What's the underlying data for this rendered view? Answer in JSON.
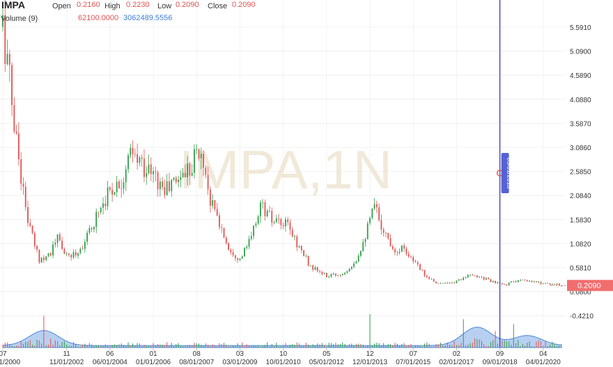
{
  "header": {
    "symbol": "IMPA",
    "open_label": "Open",
    "open_value": "0.2160",
    "high_label": "High",
    "high_value": "0.2230",
    "low_label": "Low",
    "low_value": "0.2090",
    "close_label": "Close",
    "close_value": "0.2090",
    "volume_label": "Volume (9)",
    "volume_value_1": "62100.0000",
    "volume_value_2": "3062489.5556"
  },
  "watermark": "IMPA,1N",
  "crosshair": {
    "date_label": "09/01/2018"
  },
  "last_price_label": "0.2090",
  "colors": {
    "up": "#2e9e48",
    "down": "#e05252",
    "volume_fill": "#aac8ee",
    "volume_line": "#4a86d8",
    "crosshair": "#3b3bb5",
    "last_price_bg": "#f26e6e"
  },
  "chart_data": {
    "type": "candlestick",
    "y_ticks": [
      "5.5910",
      "5.0900",
      "4.5890",
      "4.0880",
      "3.5870",
      "3.0860",
      "2.5850",
      "2.0840",
      "1.5830",
      "1.0820",
      "0.5810",
      "0.0800",
      "-0.4210"
    ],
    "ylim": [
      -0.5,
      5.9
    ],
    "x_ticks_top": [
      "07",
      "11",
      "06",
      "01",
      "08",
      "03",
      "10",
      "05",
      "12",
      "07",
      "02",
      "09",
      "04"
    ],
    "x_ticks_bottom": [
      "07/01/2000",
      "11/01/2002",
      "06/01/2004",
      "01/01/2006",
      "08/01/2007",
      "03/01/2009",
      "10/01/2010",
      "05/01/2012",
      "12/01/2013",
      "07/01/2015",
      "02/01/2017",
      "09/01/2018",
      "04/01/2020"
    ],
    "x_start": "2000-07",
    "x_end": "2020-12",
    "price_anchors": [
      [
        "2000-07",
        5.6
      ],
      [
        "2000-09",
        4.9
      ],
      [
        "2000-12",
        3.6
      ],
      [
        "2001-02",
        2.9
      ],
      [
        "2001-05",
        1.8
      ],
      [
        "2001-08",
        1.2
      ],
      [
        "2001-11",
        0.75
      ],
      [
        "2002-04",
        0.9
      ],
      [
        "2002-07",
        1.2
      ],
      [
        "2002-11",
        0.8
      ],
      [
        "2003-04",
        0.9
      ],
      [
        "2003-09",
        1.3
      ],
      [
        "2004-01",
        1.8
      ],
      [
        "2004-06",
        2.2
      ],
      [
        "2004-11",
        2.4
      ],
      [
        "2005-03",
        2.9
      ],
      [
        "2005-08",
        2.75
      ],
      [
        "2006-01",
        2.5
      ],
      [
        "2006-06",
        2.2
      ],
      [
        "2006-11",
        2.4
      ],
      [
        "2007-05",
        2.7
      ],
      [
        "2007-08",
        3.0
      ],
      [
        "2007-11",
        2.8
      ],
      [
        "2008-02",
        2.0
      ],
      [
        "2008-06",
        1.5
      ],
      [
        "2008-10",
        1.0
      ],
      [
        "2009-03",
        0.75
      ],
      [
        "2009-08",
        1.2
      ],
      [
        "2009-12",
        1.9
      ],
      [
        "2010-06",
        1.5
      ],
      [
        "2010-12",
        1.45
      ],
      [
        "2011-05",
        1.0
      ],
      [
        "2011-10",
        0.6
      ],
      [
        "2012-05",
        0.4
      ],
      [
        "2012-12",
        0.45
      ],
      [
        "2013-06",
        0.75
      ],
      [
        "2013-11",
        1.4
      ],
      [
        "2014-02",
        1.85
      ],
      [
        "2014-07",
        1.25
      ],
      [
        "2014-11",
        0.95
      ],
      [
        "2015-03",
        1.0
      ],
      [
        "2015-08",
        0.65
      ],
      [
        "2016-01",
        0.4
      ],
      [
        "2016-06",
        0.25
      ],
      [
        "2016-12",
        0.25
      ],
      [
        "2017-06",
        0.4
      ],
      [
        "2017-12",
        0.4
      ],
      [
        "2018-06",
        0.28
      ],
      [
        "2018-11",
        0.22
      ],
      [
        "2019-05",
        0.32
      ],
      [
        "2019-11",
        0.28
      ],
      [
        "2020-06",
        0.25
      ],
      [
        "2020-12",
        0.21
      ]
    ],
    "volume_spikes": [
      [
        "2002-01",
        0.95
      ],
      [
        "2013-12",
        1.0
      ],
      [
        "2017-05",
        0.85
      ],
      [
        "2018-07",
        0.5
      ],
      [
        "2019-03",
        0.7
      ]
    ],
    "volume_humps": [
      [
        "2002-01",
        0.45
      ],
      [
        "2017-11",
        0.55
      ],
      [
        "2019-09",
        0.3
      ]
    ]
  }
}
